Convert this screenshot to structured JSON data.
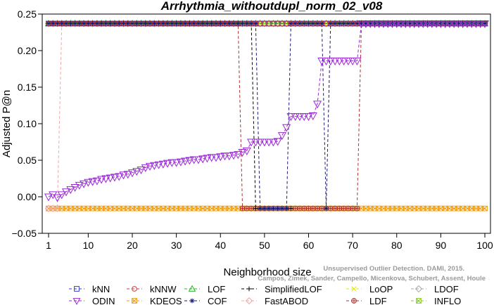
{
  "chart_data": {
    "type": "line",
    "title": "Arrhythmia_withoutdupl_norm_02_v08",
    "xlabel": "Neighborhood size",
    "ylabel": "Adjusted P@n",
    "xlim": [
      1,
      100
    ],
    "ylim": [
      -0.05,
      0.25
    ],
    "xticks": [
      1,
      10,
      20,
      30,
      40,
      50,
      60,
      70,
      80,
      90,
      100
    ],
    "yticks": [
      -0.05,
      0.0,
      0.05,
      0.1,
      0.15,
      0.2,
      0.25
    ],
    "ytick_labels": [
      "−0.05",
      "0.00",
      "0.05",
      "0.10",
      "0.15",
      "0.20",
      "0.25"
    ],
    "legend_position": "bottom",
    "credit": "Campos, Zimek, Sander, Campello, Micenkova, Schubert, Assent, Houle",
    "credit_line1": "Unsupervised Outlier Detection. DAMI, 2015.",
    "series": [
      {
        "name": "kNN",
        "color": "#3b3bc8",
        "marker": "square",
        "segments": [
          [
            1,
            0.237,
            100,
            0.237
          ]
        ]
      },
      {
        "name": "kNNW",
        "color": "#d23c3c",
        "marker": "circle",
        "segments": [
          [
            1,
            0.237,
            44,
            0.237
          ],
          [
            45,
            0.237,
            100,
            0.237
          ]
        ]
      },
      {
        "name": "LOF",
        "color": "#22bb22",
        "marker": "triangle-up",
        "segments": [
          [
            1,
            0.237,
            100,
            0.237
          ]
        ]
      },
      {
        "name": "SimplifiedLOF",
        "color": "#000000",
        "marker": "plus",
        "segments": [
          [
            1,
            0.237,
            47,
            0.237
          ],
          [
            48,
            -0.016,
            56,
            -0.016
          ]
        ]
      },
      {
        "name": "LoOP",
        "color": "#e6e600",
        "marker": "x",
        "segments": [
          [
            1,
            -0.016,
            100,
            -0.016
          ]
        ]
      },
      {
        "name": "LDOF",
        "color": "#aaaaaa",
        "marker": "diamond",
        "segments": [
          [
            1,
            0.237,
            100,
            0.237
          ]
        ]
      },
      {
        "name": "ODIN",
        "color": "#9b28d8",
        "marker": "triangle-down",
        "points": [
          [
            1,
            0.0
          ],
          [
            2,
            0.003
          ],
          [
            3,
            -0.001
          ],
          [
            4,
            0.003
          ],
          [
            5,
            0.007
          ],
          [
            6,
            0.01
          ],
          [
            7,
            0.013
          ],
          [
            8,
            0.016
          ],
          [
            9,
            0.018
          ],
          [
            10,
            0.02
          ],
          [
            11,
            0.021
          ],
          [
            12,
            0.022
          ],
          [
            13,
            0.024
          ],
          [
            14,
            0.025
          ],
          [
            15,
            0.026
          ],
          [
            16,
            0.027
          ],
          [
            17,
            0.028
          ],
          [
            18,
            0.03
          ],
          [
            19,
            0.031
          ],
          [
            20,
            0.033
          ],
          [
            21,
            0.035
          ],
          [
            22,
            0.037
          ],
          [
            23,
            0.04
          ],
          [
            24,
            0.042
          ],
          [
            25,
            0.043
          ],
          [
            26,
            0.044
          ],
          [
            27,
            0.045
          ],
          [
            28,
            0.046
          ],
          [
            29,
            0.047
          ],
          [
            30,
            0.047
          ],
          [
            31,
            0.048
          ],
          [
            32,
            0.049
          ],
          [
            33,
            0.05
          ],
          [
            34,
            0.051
          ],
          [
            35,
            0.051
          ],
          [
            36,
            0.052
          ],
          [
            37,
            0.053
          ],
          [
            38,
            0.054
          ],
          [
            39,
            0.054
          ],
          [
            40,
            0.055
          ],
          [
            41,
            0.056
          ],
          [
            42,
            0.056
          ],
          [
            43,
            0.057
          ],
          [
            44,
            0.058
          ],
          [
            45,
            0.061
          ],
          [
            46,
            0.063
          ],
          [
            47,
            0.075
          ],
          [
            48,
            0.075
          ],
          [
            49,
            0.075
          ],
          [
            50,
            0.075
          ],
          [
            51,
            0.075
          ],
          [
            52,
            0.075
          ],
          [
            53,
            0.076
          ],
          [
            54,
            0.084
          ],
          [
            55,
            0.095
          ],
          [
            56,
            0.11
          ],
          [
            57,
            0.11
          ],
          [
            58,
            0.11
          ],
          [
            59,
            0.11
          ],
          [
            60,
            0.11
          ],
          [
            61,
            0.111
          ],
          [
            62,
            0.127
          ],
          [
            63,
            0.186
          ],
          [
            64,
            0.186
          ],
          [
            65,
            0.186
          ],
          [
            66,
            0.186
          ],
          [
            67,
            0.186
          ],
          [
            68,
            0.186
          ],
          [
            69,
            0.186
          ],
          [
            70,
            0.186
          ],
          [
            71,
            0.186
          ],
          [
            72,
            0.237
          ],
          [
            100,
            0.237
          ]
        ]
      },
      {
        "name": "KDEOS",
        "color": "#f39c12",
        "marker": "square-x",
        "segments": [
          [
            1,
            -0.016,
            100,
            -0.016
          ]
        ]
      },
      {
        "name": "COF",
        "color": "#1a1a7a",
        "marker": "asterisk",
        "segments": [
          [
            1,
            0.237,
            48,
            0.237
          ],
          [
            49,
            -0.016,
            55,
            -0.016
          ],
          [
            56,
            0.237,
            63,
            0.237
          ],
          [
            64,
            -0.016,
            64,
            -0.016
          ],
          [
            65,
            0.237,
            100,
            0.237
          ]
        ]
      },
      {
        "name": "FastABOD",
        "color": "#f4a6a6",
        "marker": "diamond",
        "segments": [
          [
            1,
            -0.016,
            3,
            -0.016
          ],
          [
            4,
            0.237,
            100,
            0.237
          ]
        ]
      },
      {
        "name": "LDF",
        "color": "#b03030",
        "marker": "circle-plus",
        "segments": [
          [
            1,
            0.237,
            44,
            0.237
          ],
          [
            45,
            -0.016,
            71,
            -0.016
          ],
          [
            72,
            0.237,
            100,
            0.237
          ]
        ]
      },
      {
        "name": "INFLO",
        "color": "#88cc22",
        "marker": "square-x",
        "segments": [
          [
            1,
            0.237,
            100,
            0.237
          ]
        ]
      }
    ]
  }
}
